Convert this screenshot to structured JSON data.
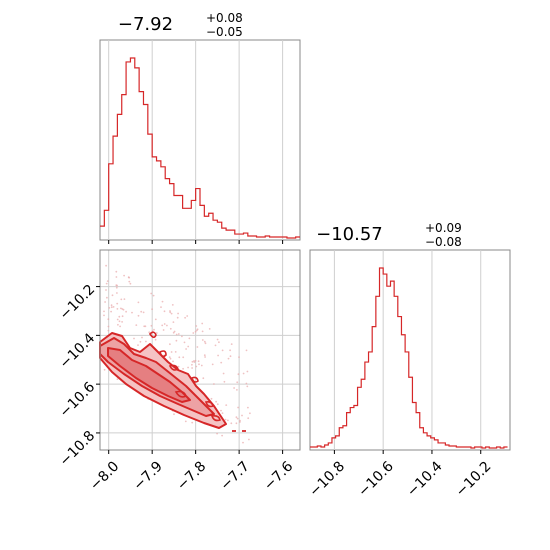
{
  "chart_data": [
    {
      "type": "histogram",
      "panel": "top-left",
      "title": {
        "value": "−7.92",
        "plus": "+0.08",
        "minus": "−0.05"
      },
      "xlim": [
        -8.02,
        -7.56
      ],
      "color": "#d62728",
      "x_ticks": [
        -8.0,
        -7.9,
        -7.8,
        -7.7,
        -7.6
      ],
      "grid": true,
      "bins": [
        -8.02,
        -8.01,
        -8.0,
        -7.99,
        -7.98,
        -7.97,
        -7.96,
        -7.95,
        -7.94,
        -7.93,
        -7.92,
        -7.91,
        -7.9,
        -7.89,
        -7.88,
        -7.87,
        -7.86,
        -7.85,
        -7.84,
        -7.83,
        -7.82,
        -7.81,
        -7.8,
        -7.79,
        -7.78,
        -7.77,
        -7.76,
        -7.75,
        -7.74,
        -7.73,
        -7.72,
        -7.71,
        -7.7,
        -7.69,
        -7.68,
        -7.67,
        -7.66,
        -7.65,
        -7.64,
        -7.63,
        -7.62,
        -7.61,
        -7.6,
        -7.59,
        -7.58,
        -7.57
      ],
      "counts": [
        12,
        28,
        75,
        103,
        125,
        145,
        178,
        182,
        172,
        148,
        135,
        105,
        82,
        78,
        72,
        60,
        55,
        43,
        43,
        30,
        30,
        38,
        50,
        33,
        22,
        25,
        18,
        16,
        10,
        8,
        8,
        4,
        4,
        5,
        2,
        2,
        1,
        1,
        2,
        1,
        1,
        1,
        1,
        0,
        0,
        1
      ]
    },
    {
      "type": "scatter",
      "panel": "bottom-left",
      "series": [
        {
          "name": "",
          "style": "2d-histogram-contours"
        }
      ],
      "xlim": [
        -8.02,
        -7.56
      ],
      "ylim": [
        -10.87,
        -10.05
      ],
      "x_ticks": [
        -8.0,
        -7.9,
        -7.8,
        -7.7,
        -7.6
      ],
      "y_ticks": [
        -10.2,
        -10.4,
        -10.6,
        -10.8
      ],
      "color": "#d62728",
      "grid": true
    },
    {
      "type": "histogram",
      "panel": "bottom-right",
      "title": {
        "value": "−10.57",
        "plus": "+0.09",
        "minus": "−0.08"
      },
      "xlim": [
        -10.9,
        -10.08
      ],
      "color": "#d62728",
      "x_ticks": [
        -10.8,
        -10.6,
        -10.4,
        -10.2
      ],
      "grid": true,
      "bins": [
        -10.9,
        -10.885,
        -10.87,
        -10.855,
        -10.84,
        -10.825,
        -10.81,
        -10.795,
        -10.78,
        -10.765,
        -10.75,
        -10.735,
        -10.72,
        -10.705,
        -10.69,
        -10.675,
        -10.66,
        -10.645,
        -10.63,
        -10.615,
        -10.6,
        -10.585,
        -10.57,
        -10.555,
        -10.54,
        -10.525,
        -10.51,
        -10.495,
        -10.48,
        -10.465,
        -10.45,
        -10.435,
        -10.42,
        -10.405,
        -10.39,
        -10.375,
        -10.36,
        -10.345,
        -10.33,
        -10.315,
        -10.3,
        -10.285,
        -10.27,
        -10.255,
        -10.24,
        -10.225,
        -10.21,
        -10.195,
        -10.18,
        -10.165,
        -10.15,
        -10.135,
        -10.12,
        -10.105
      ],
      "counts": [
        1,
        1,
        2,
        1,
        3,
        5,
        10,
        12,
        20,
        22,
        35,
        40,
        42,
        60,
        68,
        85,
        95,
        120,
        150,
        178,
        172,
        160,
        165,
        150,
        130,
        112,
        95,
        70,
        45,
        35,
        20,
        15,
        12,
        10,
        8,
        5,
        5,
        3,
        2,
        2,
        1,
        1,
        1,
        1,
        0,
        1,
        1,
        0,
        1,
        0,
        0,
        1,
        0,
        1
      ]
    }
  ]
}
